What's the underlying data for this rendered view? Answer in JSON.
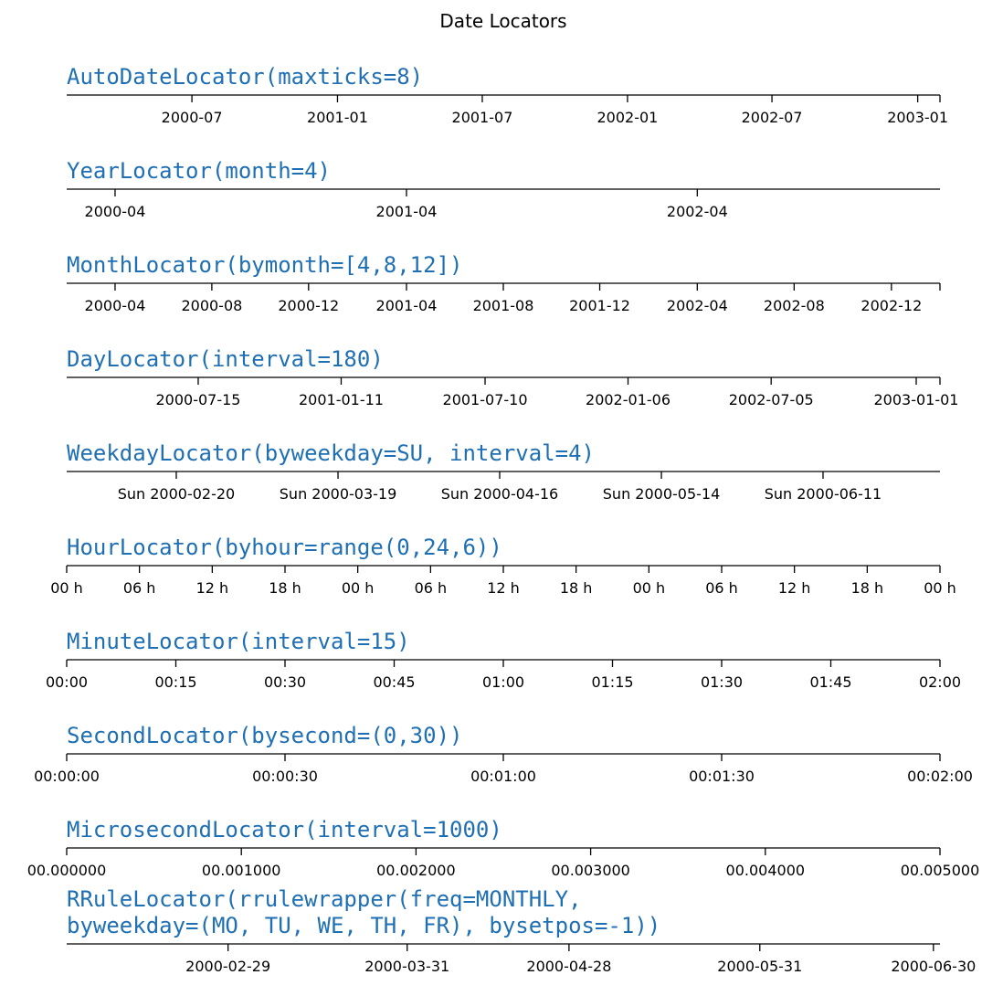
{
  "chart_data": {
    "type": "axis-ticks",
    "title": "Date Locators",
    "panels": [
      {
        "locator": "AutoDateLocator(maxticks=8)",
        "ticks": [
          {
            "value": 0.1434,
            "label": "2000-07"
          },
          {
            "value": 0.3101,
            "label": "2001-01"
          },
          {
            "value": 0.4759,
            "label": "2001-07"
          },
          {
            "value": 0.6422,
            "label": "2002-01"
          },
          {
            "value": 0.8076,
            "label": "2002-07"
          },
          {
            "value": 0.9745,
            "label": "2003-01"
          }
        ]
      },
      {
        "locator": "YearLocator(month=4)",
        "ticks": [
          {
            "value": 0.0554,
            "label": "2000-04"
          },
          {
            "value": 0.3891,
            "label": "2001-04"
          },
          {
            "value": 0.7221,
            "label": "2002-04"
          }
        ]
      },
      {
        "locator": "MonthLocator(bymonth=[4,8,12])",
        "ticks": [
          {
            "value": 0.0554,
            "label": "2000-04"
          },
          {
            "value": 0.1662,
            "label": "2000-08"
          },
          {
            "value": 0.277,
            "label": "2000-12"
          },
          {
            "value": 0.3891,
            "label": "2001-04"
          },
          {
            "value": 0.5,
            "label": "2001-08"
          },
          {
            "value": 0.6104,
            "label": "2001-12"
          },
          {
            "value": 0.7221,
            "label": "2002-04"
          },
          {
            "value": 0.833,
            "label": "2002-08"
          },
          {
            "value": 0.9444,
            "label": "2002-12"
          }
        ]
      },
      {
        "locator": "DayLocator(interval=180)",
        "ticks": [
          {
            "value": 0.1506,
            "label": "2000-07-15"
          },
          {
            "value": 0.3143,
            "label": "2001-01-11"
          },
          {
            "value": 0.4791,
            "label": "2001-07-10"
          },
          {
            "value": 0.6428,
            "label": "2002-01-06"
          },
          {
            "value": 0.8067,
            "label": "2002-07-05"
          },
          {
            "value": 0.9728,
            "label": "2003-01-01"
          }
        ]
      },
      {
        "locator": "WeekdayLocator(byweekday=SU, interval=4)",
        "ticks": [
          {
            "value": 0.1255,
            "label": "Sun 2000-02-20"
          },
          {
            "value": 0.3107,
            "label": "Sun 2000-03-19"
          },
          {
            "value": 0.4958,
            "label": "Sun 2000-04-16"
          },
          {
            "value": 0.681,
            "label": "Sun 2000-05-14"
          },
          {
            "value": 0.8661,
            "label": "Sun 2000-06-11"
          }
        ]
      },
      {
        "locator": "HourLocator(byhour=range(0,24,6))",
        "ticks": [
          {
            "value": 0.0,
            "label": "00 h"
          },
          {
            "value": 0.0833,
            "label": "06 h"
          },
          {
            "value": 0.1667,
            "label": "12 h"
          },
          {
            "value": 0.25,
            "label": "18 h"
          },
          {
            "value": 0.3333,
            "label": "00 h"
          },
          {
            "value": 0.4167,
            "label": "06 h"
          },
          {
            "value": 0.5,
            "label": "12 h"
          },
          {
            "value": 0.5833,
            "label": "18 h"
          },
          {
            "value": 0.6667,
            "label": "00 h"
          },
          {
            "value": 0.75,
            "label": "06 h"
          },
          {
            "value": 0.8333,
            "label": "12 h"
          },
          {
            "value": 0.9167,
            "label": "18 h"
          },
          {
            "value": 1.0,
            "label": "00 h"
          }
        ]
      },
      {
        "locator": "MinuteLocator(interval=15)",
        "ticks": [
          {
            "value": 0.0,
            "label": "00:00"
          },
          {
            "value": 0.125,
            "label": "00:15"
          },
          {
            "value": 0.25,
            "label": "00:30"
          },
          {
            "value": 0.375,
            "label": "00:45"
          },
          {
            "value": 0.5,
            "label": "01:00"
          },
          {
            "value": 0.625,
            "label": "01:15"
          },
          {
            "value": 0.75,
            "label": "01:30"
          },
          {
            "value": 0.875,
            "label": "01:45"
          },
          {
            "value": 1.0,
            "label": "02:00"
          }
        ]
      },
      {
        "locator": "SecondLocator(bysecond=(0,30))",
        "ticks": [
          {
            "value": 0.0,
            "label": "00:00:00"
          },
          {
            "value": 0.25,
            "label": "00:00:30"
          },
          {
            "value": 0.5,
            "label": "00:01:00"
          },
          {
            "value": 0.75,
            "label": "00:01:30"
          },
          {
            "value": 1.0,
            "label": "00:02:00"
          }
        ]
      },
      {
        "locator": "MicrosecondLocator(interval=1000)",
        "ticks": [
          {
            "value": 0.0,
            "label": "00.000000"
          },
          {
            "value": 0.2,
            "label": "00.001000"
          },
          {
            "value": 0.4,
            "label": "00.002000"
          },
          {
            "value": 0.6,
            "label": "00.003000"
          },
          {
            "value": 0.8,
            "label": "00.004000"
          },
          {
            "value": 1.0,
            "label": "00.005000"
          }
        ]
      },
      {
        "locator": "RRuleLocator(rrulewrapper(freq=MONTHLY,\nbyweekday=(MO, TU, WE, TH, FR), bysetpos=-1))",
        "ticks": [
          {
            "value": 0.1848,
            "label": "2000-02-29"
          },
          {
            "value": 0.3899,
            "label": "2000-03-31"
          },
          {
            "value": 0.5752,
            "label": "2000-04-28"
          },
          {
            "value": 0.7937,
            "label": "2000-05-31"
          },
          {
            "value": 0.9925,
            "label": "2000-06-30"
          }
        ]
      }
    ],
    "colors": {
      "locator_text": "#1f6fb4",
      "axis": "#000000"
    }
  }
}
